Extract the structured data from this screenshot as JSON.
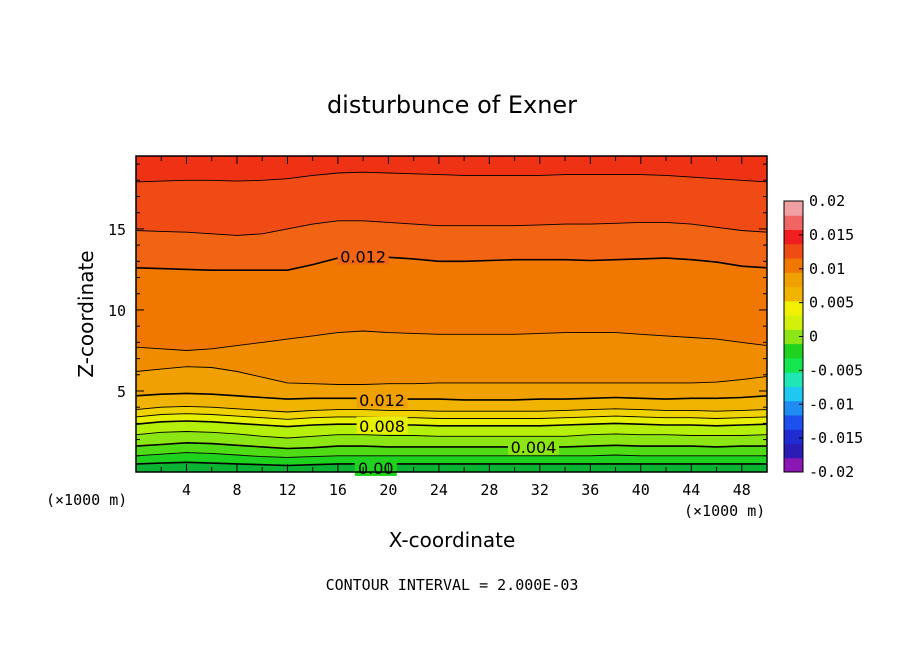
{
  "chart_data": {
    "type": "heatmap",
    "title": "disturbunce of Exner",
    "xlabel": "X-coordinate",
    "ylabel": "Z-coordinate",
    "x_unit_left": "(×1000 m)",
    "x_unit_right": "(×1000 m)",
    "footer": "CONTOUR INTERVAL = 2.000E-03",
    "xlim": [
      0,
      50
    ],
    "ylim": [
      0,
      19.5
    ],
    "x_ticks": [
      4,
      8,
      12,
      16,
      20,
      24,
      28,
      32,
      36,
      40,
      44,
      48
    ],
    "y_ticks": [
      5,
      10,
      15
    ],
    "x_tick_labels": [
      "4",
      "8",
      "12",
      "16",
      "20",
      "24",
      "28",
      "32",
      "36",
      "40",
      "44",
      "48"
    ],
    "y_tick_labels": [
      "5",
      "10",
      "15"
    ],
    "colorbar": {
      "labels": [
        "0.02",
        "0.015",
        "0.01",
        "0.005",
        "0",
        "-0.005",
        "-0.01",
        "-0.015",
        "-0.02"
      ],
      "levels": [
        -0.02,
        -0.0175,
        -0.015,
        -0.0125,
        -0.01,
        -0.0075,
        -0.005,
        -0.0025,
        0,
        0.0025,
        0.005,
        0.0075,
        0.01,
        0.0125,
        0.015,
        0.0175,
        0.02
      ],
      "colors": [
        "#8a16b4",
        "#2a1cb4",
        "#1e2cd2",
        "#1e50f0",
        "#1e8cf0",
        "#1ec8f0",
        "#1ee6b4",
        "#14e650",
        "#1ed21e",
        "#8ce614",
        "#d2f00a",
        "#f0f000",
        "#f0b400",
        "#f0a000",
        "#f07800",
        "#f04b14",
        "#f01e1e",
        "#f06464",
        "#f0a0a0"
      ]
    },
    "band_colors": [
      "#0ab432",
      "#1ed21e",
      "#50dc14",
      "#8ce614",
      "#b4f00a",
      "#e6f000",
      "#f0d200",
      "#f0b400",
      "#f0a000",
      "#f08c00",
      "#f07800",
      "#f06414",
      "#f04b14",
      "#f03214",
      "#f01e14"
    ],
    "contour_labels": [
      "0.012",
      "0.012",
      "0.008",
      "0.004",
      "0.00"
    ],
    "x": [
      0,
      2,
      4,
      6,
      8,
      10,
      12,
      14,
      16,
      18,
      20,
      22,
      24,
      26,
      28,
      30,
      32,
      34,
      36,
      38,
      40,
      42,
      44,
      46,
      48,
      50
    ],
    "contours": [
      {
        "value": 0.0,
        "z": [
          0.5,
          0.55,
          0.6,
          0.55,
          0.5,
          0.45,
          0.4,
          0.45,
          0.5,
          0.5,
          0.5,
          0.5,
          0.5,
          0.5,
          0.5,
          0.5,
          0.5,
          0.5,
          0.5,
          0.5,
          0.5,
          0.5,
          0.5,
          0.5,
          0.5,
          0.5
        ]
      },
      {
        "value": 0.002,
        "z": [
          1.0,
          1.1,
          1.2,
          1.15,
          1.05,
          0.95,
          0.9,
          0.95,
          1.0,
          1.0,
          1.0,
          1.0,
          1.0,
          1.0,
          1.0,
          1.0,
          1.0,
          1.0,
          1.0,
          1.05,
          1.0,
          1.0,
          1.0,
          1.0,
          1.0,
          1.0
        ]
      },
      {
        "value": 0.004,
        "z": [
          1.6,
          1.7,
          1.8,
          1.75,
          1.65,
          1.55,
          1.45,
          1.5,
          1.6,
          1.6,
          1.55,
          1.55,
          1.55,
          1.55,
          1.55,
          1.55,
          1.55,
          1.55,
          1.6,
          1.65,
          1.6,
          1.6,
          1.6,
          1.55,
          1.6,
          1.6
        ]
      },
      {
        "value": 0.006,
        "z": [
          2.3,
          2.45,
          2.5,
          2.45,
          2.35,
          2.2,
          2.1,
          2.2,
          2.3,
          2.3,
          2.25,
          2.25,
          2.2,
          2.2,
          2.2,
          2.2,
          2.2,
          2.2,
          2.3,
          2.35,
          2.3,
          2.3,
          2.25,
          2.25,
          2.25,
          2.3
        ]
      },
      {
        "value": 0.008,
        "z": [
          2.95,
          3.1,
          3.15,
          3.1,
          3.0,
          2.9,
          2.8,
          2.9,
          2.95,
          2.95,
          2.9,
          2.9,
          2.85,
          2.85,
          2.85,
          2.85,
          2.85,
          2.9,
          2.95,
          3.0,
          2.95,
          2.9,
          2.9,
          2.85,
          2.9,
          2.95
        ]
      },
      {
        "value": 0.009,
        "z": [
          3.4,
          3.55,
          3.6,
          3.55,
          3.45,
          3.35,
          3.25,
          3.35,
          3.4,
          3.4,
          3.35,
          3.35,
          3.3,
          3.3,
          3.3,
          3.3,
          3.3,
          3.35,
          3.4,
          3.45,
          3.4,
          3.35,
          3.35,
          3.3,
          3.35,
          3.4
        ]
      },
      {
        "value": 0.01,
        "z": [
          3.85,
          4.0,
          4.05,
          4.0,
          3.9,
          3.8,
          3.7,
          3.8,
          3.85,
          3.85,
          3.8,
          3.8,
          3.75,
          3.75,
          3.75,
          3.75,
          3.75,
          3.8,
          3.85,
          3.9,
          3.85,
          3.8,
          3.8,
          3.75,
          3.8,
          3.85
        ]
      },
      {
        "value": 0.012,
        "z": [
          4.7,
          4.8,
          4.85,
          4.8,
          4.7,
          4.6,
          4.5,
          4.55,
          4.55,
          4.55,
          4.5,
          4.5,
          4.5,
          4.45,
          4.45,
          4.45,
          4.5,
          4.5,
          4.55,
          4.6,
          4.55,
          4.5,
          4.55,
          4.55,
          4.6,
          4.7
        ]
      },
      {
        "value": 0.013,
        "z": [
          6.2,
          6.35,
          6.5,
          6.45,
          6.2,
          5.85,
          5.5,
          5.45,
          5.4,
          5.4,
          5.45,
          5.45,
          5.5,
          5.5,
          5.5,
          5.5,
          5.5,
          5.5,
          5.5,
          5.5,
          5.5,
          5.5,
          5.5,
          5.55,
          5.7,
          5.9
        ]
      },
      {
        "value": 0.0125,
        "z": [
          7.7,
          7.6,
          7.5,
          7.6,
          7.8,
          8.0,
          8.2,
          8.4,
          8.6,
          8.7,
          8.6,
          8.55,
          8.5,
          8.5,
          8.5,
          8.5,
          8.55,
          8.6,
          8.6,
          8.6,
          8.5,
          8.4,
          8.3,
          8.2,
          8.0,
          7.8
        ]
      },
      {
        "value": 0.012,
        "z": [
          12.6,
          12.55,
          12.5,
          12.45,
          12.45,
          12.45,
          12.45,
          12.8,
          13.2,
          13.3,
          13.25,
          13.15,
          13.0,
          13.0,
          13.05,
          13.1,
          13.1,
          13.1,
          13.05,
          13.1,
          13.15,
          13.2,
          13.1,
          12.95,
          12.7,
          12.6
        ]
      },
      {
        "value": 0.0115,
        "z": [
          14.9,
          14.85,
          14.8,
          14.7,
          14.6,
          14.7,
          15.0,
          15.3,
          15.5,
          15.5,
          15.4,
          15.3,
          15.2,
          15.2,
          15.2,
          15.2,
          15.25,
          15.3,
          15.3,
          15.35,
          15.4,
          15.4,
          15.3,
          15.1,
          14.9,
          14.8
        ]
      },
      {
        "value": 0.011,
        "z": [
          17.9,
          17.95,
          18.0,
          18.0,
          17.95,
          18.0,
          18.1,
          18.3,
          18.45,
          18.5,
          18.45,
          18.4,
          18.35,
          18.3,
          18.3,
          18.3,
          18.3,
          18.35,
          18.35,
          18.35,
          18.35,
          18.3,
          18.2,
          18.1,
          18.0,
          17.9
        ]
      }
    ],
    "grid": false,
    "legend": "right colorbar"
  }
}
